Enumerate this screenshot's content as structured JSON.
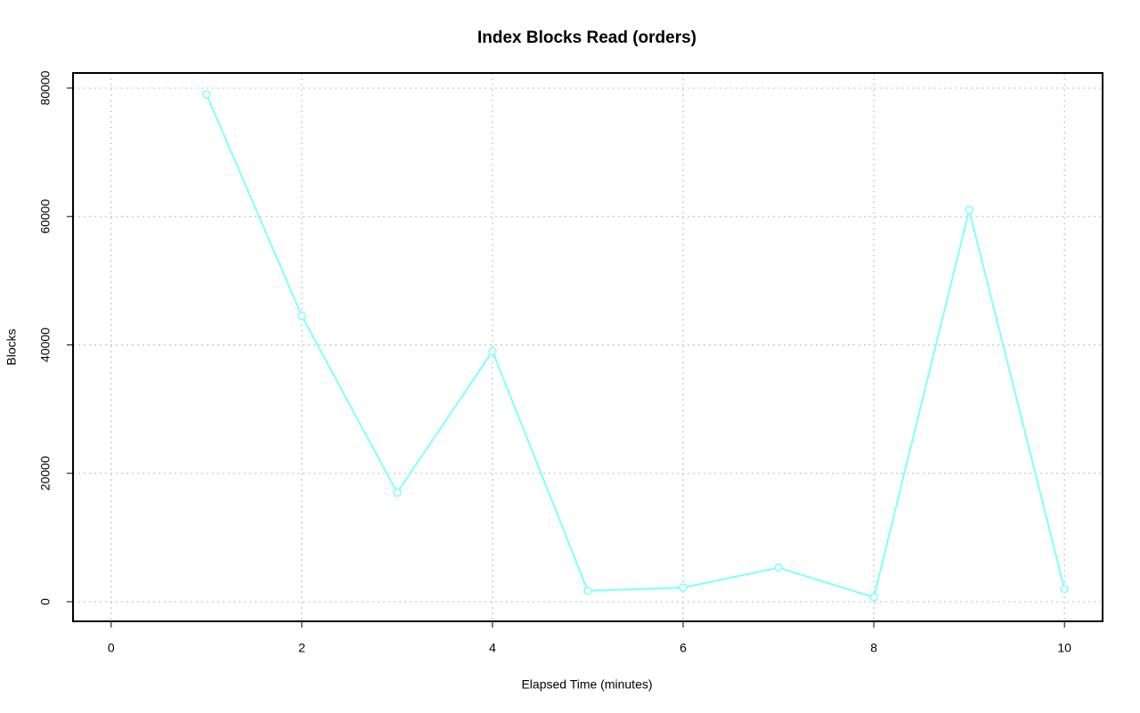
{
  "chart_data": {
    "type": "line",
    "title": "Index Blocks Read (orders)",
    "x_label": "Elapsed Time (minutes)",
    "y_label": "Blocks",
    "x": [
      1,
      2,
      3,
      4,
      5,
      6,
      7,
      8,
      9,
      10
    ],
    "values": [
      79000,
      44500,
      17000,
      39000,
      1700,
      2200,
      5300,
      700,
      61000,
      2000
    ],
    "color": "#80ffff",
    "xlim": [
      -0.4,
      10.4
    ],
    "xticks": [
      0,
      2,
      4,
      6,
      8,
      10
    ],
    "ylim": [
      -3050,
      82350
    ],
    "yticks": [
      0,
      20000,
      40000,
      60000,
      80000
    ],
    "grid": true
  }
}
